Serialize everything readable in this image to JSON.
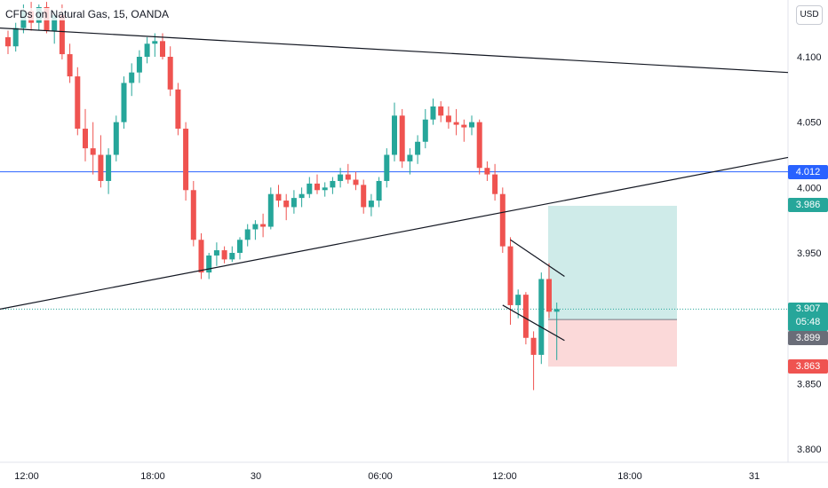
{
  "title": "CFDs on Natural Gas, 15, OANDA",
  "currency": "USD",
  "colors": {
    "up": "#26a69a",
    "down": "#ef5350",
    "blue_line": "#2962ff",
    "trend": "#131722"
  },
  "chart_data": {
    "type": "candlestick",
    "y_ticks": [
      "4.100",
      "4.050",
      "4.000",
      "3.950",
      "3.850",
      "3.800"
    ],
    "x_ticks": [
      "12:00",
      "18:00",
      "30",
      "06:00",
      "12:00",
      "18:00",
      "31"
    ],
    "horizontal_level": "4.012",
    "price_tags": {
      "horizontal": "4.012",
      "target": "3.986",
      "current": "3.907",
      "countdown": "05:48",
      "entry": "3.899",
      "stop": "3.863"
    },
    "candles": [
      [
        4.115,
        4.12,
        4.102,
        4.108
      ],
      [
        4.108,
        4.126,
        4.104,
        4.122
      ],
      [
        4.122,
        4.14,
        4.118,
        4.135
      ],
      [
        4.135,
        4.142,
        4.12,
        4.126
      ],
      [
        4.126,
        4.14,
        4.12,
        4.138
      ],
      [
        4.138,
        4.142,
        4.118,
        4.12
      ],
      [
        4.12,
        4.135,
        4.11,
        4.132
      ],
      [
        4.132,
        4.14,
        4.098,
        4.102
      ],
      [
        4.102,
        4.11,
        4.08,
        4.085
      ],
      [
        4.085,
        4.092,
        4.04,
        4.045
      ],
      [
        4.045,
        4.06,
        4.02,
        4.03
      ],
      [
        4.03,
        4.05,
        4.01,
        4.025
      ],
      [
        4.025,
        4.04,
        4.0,
        4.005
      ],
      [
        4.005,
        4.03,
        3.995,
        4.025
      ],
      [
        4.025,
        4.055,
        4.02,
        4.05
      ],
      [
        4.05,
        4.085,
        4.045,
        4.08
      ],
      [
        4.08,
        4.095,
        4.07,
        4.088
      ],
      [
        4.088,
        4.105,
        4.08,
        4.1
      ],
      [
        4.1,
        4.115,
        4.095,
        4.11
      ],
      [
        4.11,
        4.118,
        4.1,
        4.112
      ],
      [
        4.112,
        4.118,
        4.098,
        4.1
      ],
      [
        4.1,
        4.108,
        4.07,
        4.075
      ],
      [
        4.075,
        4.08,
        4.04,
        4.045
      ],
      [
        4.045,
        4.05,
        3.99,
        3.998
      ],
      [
        3.998,
        4.005,
        3.955,
        3.96
      ],
      [
        3.96,
        3.965,
        3.93,
        3.935
      ],
      [
        3.935,
        3.95,
        3.93,
        3.948
      ],
      [
        3.948,
        3.958,
        3.94,
        3.952
      ],
      [
        3.952,
        3.955,
        3.942,
        3.945
      ],
      [
        3.945,
        3.955,
        3.943,
        3.95
      ],
      [
        3.95,
        3.962,
        3.945,
        3.96
      ],
      [
        3.96,
        3.972,
        3.955,
        3.968
      ],
      [
        3.968,
        3.975,
        3.96,
        3.972
      ],
      [
        3.972,
        3.98,
        3.962,
        3.97
      ],
      [
        3.97,
        4.0,
        3.968,
        3.995
      ],
      [
        3.995,
        4.002,
        3.985,
        3.99
      ],
      [
        3.99,
        3.995,
        3.975,
        3.985
      ],
      [
        3.985,
        3.998,
        3.98,
        3.992
      ],
      [
        3.992,
        4.0,
        3.985,
        3.995
      ],
      [
        3.995,
        4.008,
        3.992,
        4.003
      ],
      [
        4.003,
        4.01,
        3.995,
        3.998
      ],
      [
        3.998,
        4.004,
        3.993,
        4.0
      ],
      [
        4.0,
        4.008,
        3.995,
        4.005
      ],
      [
        4.005,
        4.015,
        4.0,
        4.01
      ],
      [
        4.01,
        4.018,
        4.003,
        4.006
      ],
      [
        4.006,
        4.012,
        3.998,
        4.002
      ],
      [
        4.002,
        4.006,
        3.98,
        3.985
      ],
      [
        3.985,
        3.995,
        3.978,
        3.99
      ],
      [
        3.99,
        4.008,
        3.985,
        4.005
      ],
      [
        4.005,
        4.03,
        4.0,
        4.025
      ],
      [
        4.025,
        4.065,
        4.02,
        4.055
      ],
      [
        4.055,
        4.06,
        4.015,
        4.02
      ],
      [
        4.02,
        4.03,
        4.01,
        4.025
      ],
      [
        4.025,
        4.04,
        4.018,
        4.035
      ],
      [
        4.035,
        4.06,
        4.03,
        4.052
      ],
      [
        4.052,
        4.068,
        4.048,
        4.062
      ],
      [
        4.062,
        4.066,
        4.05,
        4.055
      ],
      [
        4.055,
        4.062,
        4.045,
        4.05
      ],
      [
        4.05,
        4.06,
        4.04,
        4.048
      ],
      [
        4.048,
        4.052,
        4.035,
        4.046
      ],
      [
        4.046,
        4.055,
        4.04,
        4.05
      ],
      [
        4.05,
        4.052,
        4.01,
        4.015
      ],
      [
        4.015,
        4.02,
        4.005,
        4.01
      ],
      [
        4.01,
        4.018,
        3.99,
        3.995
      ],
      [
        3.995,
        4.0,
        3.95,
        3.955
      ],
      [
        3.955,
        3.962,
        3.895,
        3.91
      ],
      [
        3.91,
        3.922,
        3.9,
        3.918
      ],
      [
        3.918,
        3.92,
        3.88,
        3.885
      ],
      [
        3.885,
        3.89,
        3.845,
        3.872
      ],
      [
        3.872,
        3.935,
        3.865,
        3.93
      ],
      [
        3.93,
        3.942,
        3.9,
        3.905
      ],
      [
        3.905,
        3.912,
        3.868,
        3.907
      ]
    ],
    "trendlines": [
      {
        "name": "upper-resistance",
        "from": [
          "open-left",
          4.122
        ],
        "to": [
          "right",
          4.088
        ]
      },
      {
        "name": "ascending-support",
        "from": [
          "left",
          3.907
        ],
        "to": [
          "right",
          4.023
        ]
      },
      {
        "name": "channel-upper",
        "from": [
          "c65",
          3.96
        ],
        "to": [
          "c72",
          3.932
        ]
      },
      {
        "name": "channel-lower",
        "from": [
          "c64",
          3.91
        ],
        "to": [
          "c72",
          3.883
        ]
      }
    ],
    "position": {
      "entry": 3.899,
      "target": 3.986,
      "stop": 3.863
    }
  }
}
